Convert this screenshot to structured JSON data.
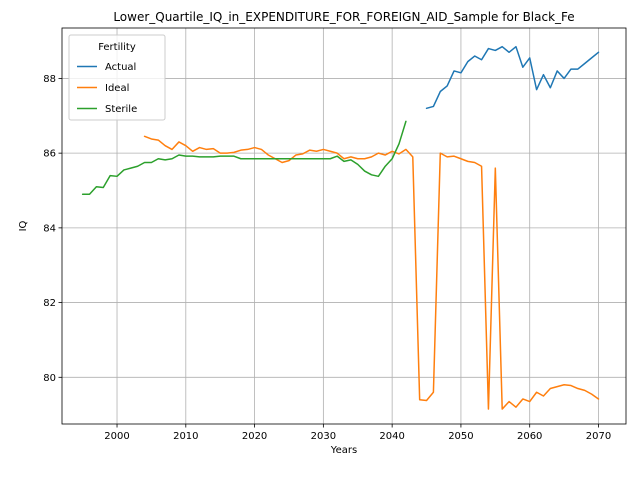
{
  "chart_data": {
    "type": "line",
    "title": "Lower_Quartile_IQ_in_EXPENDITURE_FOR_FOREIGN_AID_Sample for Black_Fe",
    "xlabel": "Years",
    "ylabel": "IQ",
    "xlim": [
      1992,
      2074
    ],
    "ylim": [
      78.75,
      89.35
    ],
    "xticks": [
      2000,
      2010,
      2020,
      2030,
      2040,
      2050,
      2060,
      2070
    ],
    "yticks": [
      80,
      82,
      84,
      86,
      88
    ],
    "grid": true,
    "legend": {
      "title": "Fertility",
      "placement": "upper-left"
    },
    "series": [
      {
        "name": "Actual",
        "color": "#1f77b4",
        "points": [
          [
            2045,
            87.2
          ],
          [
            2046,
            87.25
          ],
          [
            2047,
            87.65
          ],
          [
            2048,
            87.8
          ],
          [
            2049,
            88.2
          ],
          [
            2050,
            88.15
          ],
          [
            2051,
            88.45
          ],
          [
            2052,
            88.6
          ],
          [
            2053,
            88.5
          ],
          [
            2054,
            88.8
          ],
          [
            2055,
            88.75
          ],
          [
            2056,
            88.85
          ],
          [
            2057,
            88.7
          ],
          [
            2058,
            88.85
          ],
          [
            2059,
            88.3
          ],
          [
            2060,
            88.55
          ],
          [
            2061,
            87.7
          ],
          [
            2062,
            88.1
          ],
          [
            2063,
            87.75
          ],
          [
            2064,
            88.2
          ],
          [
            2065,
            88.0
          ],
          [
            2066,
            88.25
          ],
          [
            2067,
            88.25
          ],
          [
            2068,
            88.4
          ],
          [
            2069,
            88.55
          ],
          [
            2070,
            88.7
          ]
        ]
      },
      {
        "name": "Ideal",
        "color": "#ff7f0e",
        "points": [
          [
            2004,
            86.45
          ],
          [
            2005,
            86.38
          ],
          [
            2006,
            86.35
          ],
          [
            2007,
            86.2
          ],
          [
            2008,
            86.1
          ],
          [
            2009,
            86.3
          ],
          [
            2010,
            86.2
          ],
          [
            2011,
            86.05
          ],
          [
            2012,
            86.15
          ],
          [
            2013,
            86.1
          ],
          [
            2014,
            86.12
          ],
          [
            2015,
            86.0
          ],
          [
            2016,
            86.0
          ],
          [
            2017,
            86.02
          ],
          [
            2018,
            86.08
          ],
          [
            2019,
            86.1
          ],
          [
            2020,
            86.15
          ],
          [
            2021,
            86.1
          ],
          [
            2022,
            85.95
          ],
          [
            2023,
            85.85
          ],
          [
            2024,
            85.75
          ],
          [
            2025,
            85.8
          ],
          [
            2026,
            85.95
          ],
          [
            2027,
            85.98
          ],
          [
            2028,
            86.08
          ],
          [
            2029,
            86.05
          ],
          [
            2030,
            86.1
          ],
          [
            2031,
            86.05
          ],
          [
            2032,
            86.0
          ],
          [
            2033,
            85.85
          ],
          [
            2034,
            85.9
          ],
          [
            2035,
            85.85
          ],
          [
            2036,
            85.85
          ],
          [
            2037,
            85.9
          ],
          [
            2038,
            86.0
          ],
          [
            2039,
            85.95
          ],
          [
            2040,
            86.05
          ],
          [
            2041,
            85.98
          ],
          [
            2042,
            86.1
          ],
          [
            2043,
            85.9
          ],
          [
            2044,
            79.4
          ],
          [
            2045,
            79.38
          ],
          [
            2046,
            79.6
          ],
          [
            2047,
            86.0
          ],
          [
            2048,
            85.9
          ],
          [
            2049,
            85.92
          ],
          [
            2050,
            85.85
          ],
          [
            2051,
            85.78
          ],
          [
            2052,
            85.75
          ],
          [
            2053,
            85.65
          ],
          [
            2054,
            79.15
          ],
          [
            2055,
            85.6
          ],
          [
            2056,
            79.15
          ],
          [
            2057,
            79.35
          ],
          [
            2058,
            79.2
          ],
          [
            2059,
            79.42
          ],
          [
            2060,
            79.35
          ],
          [
            2061,
            79.6
          ],
          [
            2062,
            79.5
          ],
          [
            2063,
            79.7
          ],
          [
            2064,
            79.75
          ],
          [
            2065,
            79.8
          ],
          [
            2066,
            79.78
          ],
          [
            2067,
            79.7
          ],
          [
            2068,
            79.65
          ],
          [
            2069,
            79.55
          ],
          [
            2070,
            79.42
          ]
        ]
      },
      {
        "name": "Sterile",
        "color": "#2ca02c",
        "points": [
          [
            1995,
            84.9
          ],
          [
            1996,
            84.9
          ],
          [
            1997,
            85.1
          ],
          [
            1998,
            85.08
          ],
          [
            1999,
            85.4
          ],
          [
            2000,
            85.38
          ],
          [
            2001,
            85.55
          ],
          [
            2002,
            85.6
          ],
          [
            2003,
            85.65
          ],
          [
            2004,
            85.75
          ],
          [
            2005,
            85.75
          ],
          [
            2006,
            85.85
          ],
          [
            2007,
            85.82
          ],
          [
            2008,
            85.85
          ],
          [
            2009,
            85.95
          ],
          [
            2010,
            85.92
          ],
          [
            2011,
            85.92
          ],
          [
            2012,
            85.9
          ],
          [
            2013,
            85.9
          ],
          [
            2014,
            85.9
          ],
          [
            2015,
            85.92
          ],
          [
            2016,
            85.92
          ],
          [
            2017,
            85.92
          ],
          [
            2018,
            85.85
          ],
          [
            2019,
            85.85
          ],
          [
            2020,
            85.85
          ],
          [
            2021,
            85.85
          ],
          [
            2022,
            85.85
          ],
          [
            2023,
            85.85
          ],
          [
            2024,
            85.85
          ],
          [
            2025,
            85.85
          ],
          [
            2026,
            85.85
          ],
          [
            2027,
            85.85
          ],
          [
            2028,
            85.85
          ],
          [
            2029,
            85.85
          ],
          [
            2030,
            85.85
          ],
          [
            2031,
            85.85
          ],
          [
            2032,
            85.92
          ],
          [
            2033,
            85.78
          ],
          [
            2034,
            85.82
          ],
          [
            2035,
            85.7
          ],
          [
            2036,
            85.52
          ],
          [
            2037,
            85.42
          ],
          [
            2038,
            85.38
          ],
          [
            2039,
            85.65
          ],
          [
            2040,
            85.85
          ],
          [
            2041,
            86.25
          ],
          [
            2042,
            86.85
          ]
        ]
      }
    ]
  }
}
